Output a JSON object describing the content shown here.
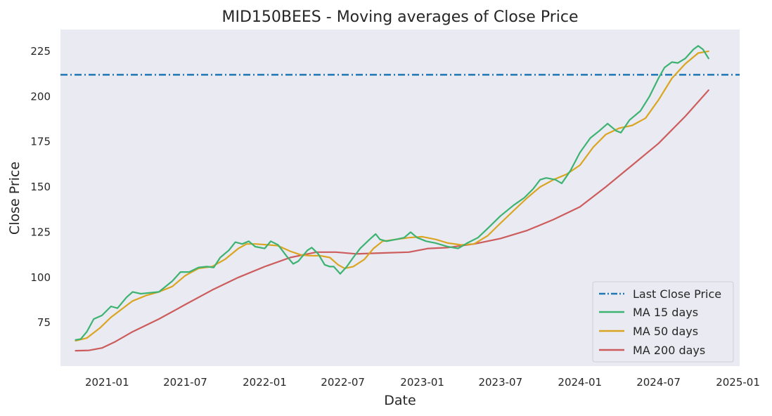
{
  "chart_data": {
    "type": "line",
    "title": "MID150BEES - Moving averages of Close Price",
    "xlabel": "Date",
    "ylabel": "Close Price",
    "xlim": [
      "2020-09-15",
      "2025-01-05"
    ],
    "ylim": [
      51,
      237
    ],
    "x_ticks": [
      "2021-01",
      "2021-07",
      "2022-01",
      "2022-07",
      "2023-01",
      "2023-07",
      "2024-01",
      "2024-07",
      "2025-01"
    ],
    "y_ticks": [
      75,
      100,
      125,
      150,
      175,
      200,
      225
    ],
    "grid": false,
    "legend_position": "bottom-right",
    "hline": {
      "name": "Last Close Price",
      "value": 212,
      "color": "#1f77b4",
      "style": "dash-dot"
    },
    "series": [
      {
        "name": "MA 15 days",
        "color": "#3cb371",
        "points": [
          [
            "2020-10-20",
            65.5
          ],
          [
            "2020-11-01",
            66
          ],
          [
            "2020-11-15",
            70
          ],
          [
            "2020-12-01",
            77
          ],
          [
            "2020-12-20",
            79
          ],
          [
            "2021-01-10",
            84
          ],
          [
            "2021-01-25",
            83
          ],
          [
            "2021-02-15",
            89
          ],
          [
            "2021-03-01",
            92
          ],
          [
            "2021-03-20",
            91
          ],
          [
            "2021-04-10",
            91.5
          ],
          [
            "2021-05-01",
            92
          ],
          [
            "2021-06-01",
            98
          ],
          [
            "2021-06-20",
            103
          ],
          [
            "2021-07-10",
            103
          ],
          [
            "2021-08-01",
            105.5
          ],
          [
            "2021-08-20",
            106
          ],
          [
            "2021-09-05",
            105.5
          ],
          [
            "2021-09-20",
            111
          ],
          [
            "2021-10-10",
            115
          ],
          [
            "2021-10-25",
            119.5
          ],
          [
            "2021-11-10",
            118.5
          ],
          [
            "2021-11-25",
            120
          ],
          [
            "2021-12-10",
            117
          ],
          [
            "2022-01-01",
            116
          ],
          [
            "2022-01-15",
            120
          ],
          [
            "2022-02-01",
            118
          ],
          [
            "2022-02-20",
            112
          ],
          [
            "2022-03-08",
            107.5
          ],
          [
            "2022-03-20",
            109
          ],
          [
            "2022-04-10",
            115
          ],
          [
            "2022-04-20",
            116.5
          ],
          [
            "2022-05-05",
            113
          ],
          [
            "2022-05-20",
            107
          ],
          [
            "2022-06-01",
            106
          ],
          [
            "2022-06-10",
            106
          ],
          [
            "2022-06-25",
            102
          ],
          [
            "2022-07-10",
            106
          ],
          [
            "2022-07-25",
            111
          ],
          [
            "2022-08-10",
            116
          ],
          [
            "2022-09-01",
            121
          ],
          [
            "2022-09-15",
            124
          ],
          [
            "2022-09-25",
            121
          ],
          [
            "2022-10-10",
            120
          ],
          [
            "2022-11-01",
            121
          ],
          [
            "2022-11-20",
            122
          ],
          [
            "2022-12-05",
            125
          ],
          [
            "2022-12-20",
            122
          ],
          [
            "2023-01-10",
            120
          ],
          [
            "2023-02-01",
            119
          ],
          [
            "2023-03-01",
            117
          ],
          [
            "2023-03-25",
            116
          ],
          [
            "2023-04-15",
            119
          ],
          [
            "2023-05-10",
            122
          ],
          [
            "2023-06-01",
            127
          ],
          [
            "2023-07-01",
            134
          ],
          [
            "2023-08-01",
            140
          ],
          [
            "2023-08-25",
            144
          ],
          [
            "2023-09-15",
            149
          ],
          [
            "2023-10-01",
            154
          ],
          [
            "2023-10-15",
            155
          ],
          [
            "2023-11-05",
            154
          ],
          [
            "2023-11-20",
            152
          ],
          [
            "2023-12-10",
            159
          ],
          [
            "2024-01-01",
            169
          ],
          [
            "2024-01-25",
            177
          ],
          [
            "2024-02-15",
            181
          ],
          [
            "2024-03-05",
            185
          ],
          [
            "2024-03-25",
            181
          ],
          [
            "2024-04-05",
            180
          ],
          [
            "2024-04-25",
            187
          ],
          [
            "2024-05-20",
            192
          ],
          [
            "2024-06-10",
            200
          ],
          [
            "2024-07-01",
            210
          ],
          [
            "2024-07-15",
            216
          ],
          [
            "2024-08-01",
            219
          ],
          [
            "2024-08-15",
            218.5
          ],
          [
            "2024-09-01",
            221
          ],
          [
            "2024-09-20",
            226
          ],
          [
            "2024-10-01",
            228
          ],
          [
            "2024-10-12",
            226
          ],
          [
            "2024-10-25",
            221
          ]
        ]
      },
      {
        "name": "MA 50 days",
        "color": "#daa520",
        "points": [
          [
            "2020-10-20",
            65
          ],
          [
            "2020-11-15",
            66.5
          ],
          [
            "2020-12-15",
            72
          ],
          [
            "2021-01-10",
            78
          ],
          [
            "2021-02-01",
            82
          ],
          [
            "2021-03-01",
            87
          ],
          [
            "2021-04-01",
            90
          ],
          [
            "2021-05-01",
            92
          ],
          [
            "2021-06-01",
            95
          ],
          [
            "2021-07-01",
            101
          ],
          [
            "2021-08-01",
            105
          ],
          [
            "2021-09-01",
            106
          ],
          [
            "2021-10-01",
            110
          ],
          [
            "2021-11-01",
            116
          ],
          [
            "2021-11-20",
            118.5
          ],
          [
            "2021-12-10",
            118.5
          ],
          [
            "2022-01-10",
            118
          ],
          [
            "2022-02-01",
            117.5
          ],
          [
            "2022-03-01",
            114.5
          ],
          [
            "2022-03-25",
            112.5
          ],
          [
            "2022-04-15",
            112
          ],
          [
            "2022-05-10",
            112
          ],
          [
            "2022-06-01",
            111
          ],
          [
            "2022-06-20",
            107
          ],
          [
            "2022-07-05",
            105
          ],
          [
            "2022-07-25",
            106
          ],
          [
            "2022-08-20",
            110
          ],
          [
            "2022-09-10",
            116
          ],
          [
            "2022-10-01",
            120
          ],
          [
            "2022-11-01",
            121
          ],
          [
            "2022-12-01",
            122
          ],
          [
            "2023-01-01",
            122.5
          ],
          [
            "2023-02-01",
            121
          ],
          [
            "2023-03-01",
            119
          ],
          [
            "2023-04-01",
            118
          ],
          [
            "2023-05-01",
            118.5
          ],
          [
            "2023-06-01",
            123
          ],
          [
            "2023-07-01",
            130
          ],
          [
            "2023-08-01",
            137
          ],
          [
            "2023-09-01",
            144
          ],
          [
            "2023-10-01",
            150
          ],
          [
            "2023-11-01",
            154
          ],
          [
            "2023-12-01",
            157
          ],
          [
            "2024-01-01",
            162
          ],
          [
            "2024-02-01",
            172
          ],
          [
            "2024-03-01",
            179
          ],
          [
            "2024-04-01",
            182.5
          ],
          [
            "2024-05-01",
            184
          ],
          [
            "2024-06-01",
            188
          ],
          [
            "2024-07-01",
            198
          ],
          [
            "2024-08-01",
            210
          ],
          [
            "2024-09-01",
            218
          ],
          [
            "2024-10-01",
            224
          ],
          [
            "2024-10-25",
            225
          ]
        ]
      },
      {
        "name": "MA 200 days",
        "color": "#cd5c5c",
        "points": [
          [
            "2020-10-20",
            59.5
          ],
          [
            "2020-11-20",
            59.7
          ],
          [
            "2020-12-20",
            61
          ],
          [
            "2021-01-20",
            64.5
          ],
          [
            "2021-03-01",
            70
          ],
          [
            "2021-05-01",
            77
          ],
          [
            "2021-07-01",
            85
          ],
          [
            "2021-09-01",
            93
          ],
          [
            "2021-11-01",
            100
          ],
          [
            "2022-01-01",
            106
          ],
          [
            "2022-03-01",
            111
          ],
          [
            "2022-05-01",
            114
          ],
          [
            "2022-06-15",
            114
          ],
          [
            "2022-08-01",
            113
          ],
          [
            "2022-10-01",
            113.5
          ],
          [
            "2022-12-01",
            114
          ],
          [
            "2023-01-15",
            116
          ],
          [
            "2023-03-01",
            116.5
          ],
          [
            "2023-05-01",
            118.5
          ],
          [
            "2023-07-01",
            121.5
          ],
          [
            "2023-09-01",
            126
          ],
          [
            "2023-11-01",
            132
          ],
          [
            "2024-01-01",
            139
          ],
          [
            "2024-03-01",
            150
          ],
          [
            "2024-05-01",
            162
          ],
          [
            "2024-07-01",
            174
          ],
          [
            "2024-09-01",
            189
          ],
          [
            "2024-10-25",
            203.5
          ]
        ]
      }
    ]
  }
}
